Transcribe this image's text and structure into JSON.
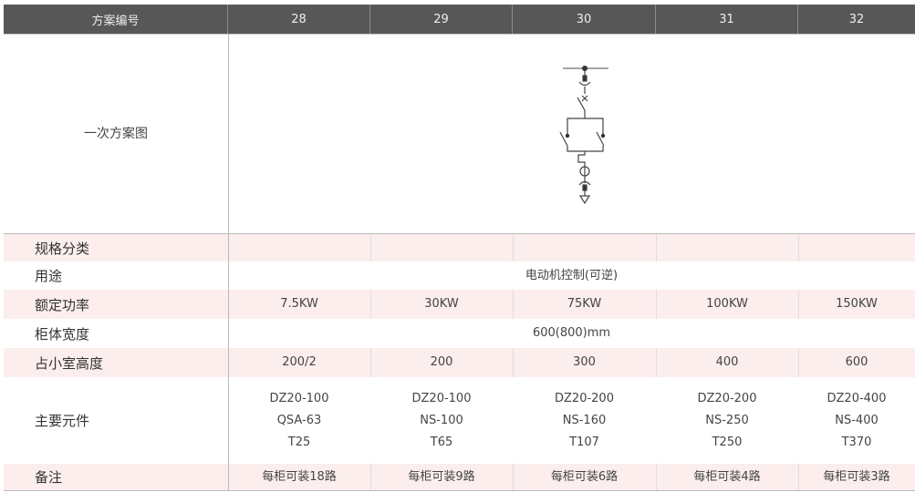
{
  "header": {
    "label": "方案编号",
    "schemes": [
      "28",
      "29",
      "30",
      "31",
      "32"
    ]
  },
  "diagram_row": {
    "label": "一次方案图"
  },
  "rows": {
    "spec": {
      "label": "规格分类"
    },
    "usage": {
      "label": "用途",
      "value": "电动机控制(可逆)"
    },
    "power": {
      "label": "额定功率",
      "values": [
        "7.5KW",
        "30KW",
        "75KW",
        "100KW",
        "150KW"
      ]
    },
    "width": {
      "label": "柜体宽度",
      "value": "600(800)mm"
    },
    "height": {
      "label": "占小室高度",
      "values": [
        "200/2",
        "200",
        "300",
        "400",
        "600"
      ]
    },
    "components": {
      "label": "主要元件",
      "values": [
        [
          "DZ20-100",
          "QSA-63",
          "T25"
        ],
        [
          "DZ20-100",
          "NS-100",
          "T65"
        ],
        [
          "DZ20-200",
          "NS-160",
          "T107"
        ],
        [
          "DZ20-200",
          "NS-250",
          "T250"
        ],
        [
          "DZ20-400",
          "NS-400",
          "T370"
        ]
      ]
    },
    "notes": {
      "label": "备注",
      "values": [
        "每柜可装18路",
        "每柜可装9路",
        "每柜可装6路",
        "每柜可装4路",
        "每柜可装3路"
      ]
    }
  }
}
